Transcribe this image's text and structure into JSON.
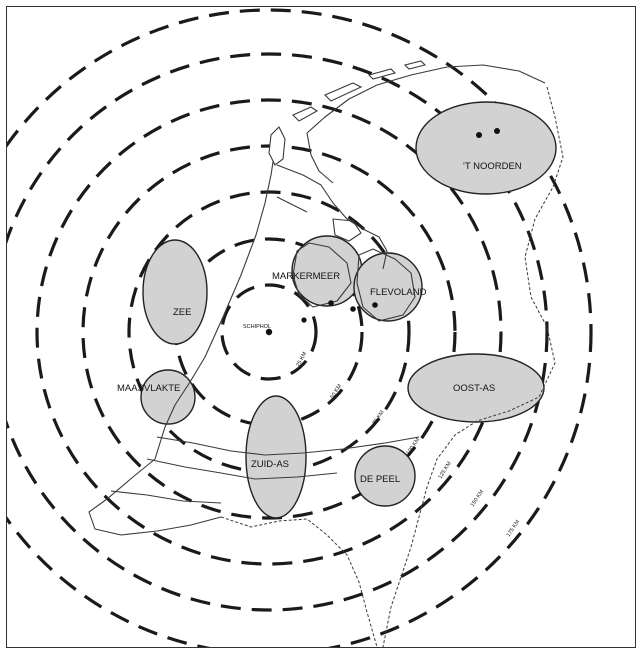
{
  "map": {
    "center_label": "SCHIPHOL",
    "regions": [
      {
        "id": "t-noorden",
        "label": "'T NOORDEN"
      },
      {
        "id": "zee",
        "label": "ZEE"
      },
      {
        "id": "markermeer",
        "label": "MARKERMEER"
      },
      {
        "id": "flevoland",
        "label": "FLEVOLAND"
      },
      {
        "id": "maasvlakte",
        "label": "MAASVLAKTE"
      },
      {
        "id": "oost-as",
        "label": "OOST-AS"
      },
      {
        "id": "zuid-as",
        "label": "ZUID-AS"
      },
      {
        "id": "de-peel",
        "label": "DE PEEL"
      }
    ],
    "distance_rings": [
      {
        "km": 25,
        "label": "25 KM"
      },
      {
        "km": 50,
        "label": "50 KM"
      },
      {
        "km": 75,
        "label": "75 KM"
      },
      {
        "km": 100,
        "label": "100 KM"
      },
      {
        "km": 125,
        "label": "125 KM"
      },
      {
        "km": 150,
        "label": "150 KM"
      },
      {
        "km": 175,
        "label": "175 KM"
      }
    ]
  }
}
